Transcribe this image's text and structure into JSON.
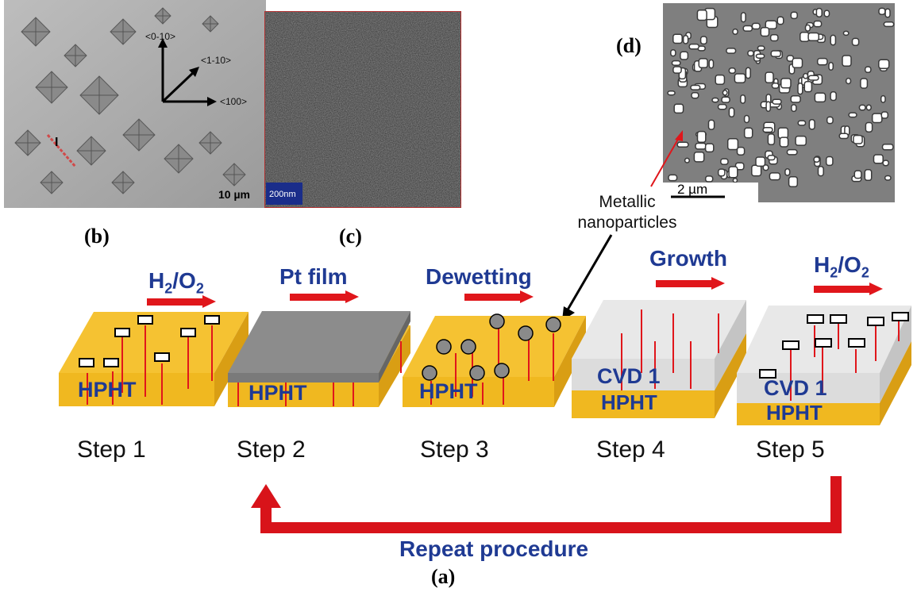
{
  "panel_labels": {
    "a": "(a)",
    "b": "(b)",
    "c": "(c)",
    "d": "(d)"
  },
  "micrograph_b": {
    "directions": [
      "<0-10>",
      "<1-10>",
      "<100>"
    ],
    "marker": "I",
    "scale_bar": "10 µm"
  },
  "micrograph_c": {
    "scale_bar": "200nm"
  },
  "micrograph_d": {
    "scale_bar": "2 µm"
  },
  "annotation": {
    "line1": "Metallic",
    "line2": "nanoparticles"
  },
  "operations": [
    {
      "main": "H",
      "sub1": "2",
      "mid": "/O",
      "sub2": "2"
    },
    {
      "text": "Pt film"
    },
    {
      "text": "Dewetting"
    },
    {
      "text": "Growth"
    },
    {
      "main": "H",
      "sub1": "2",
      "mid": "/O",
      "sub2": "2"
    }
  ],
  "layers": {
    "hpht": "HPHT",
    "cvd": "CVD 1"
  },
  "steps": [
    "Step 1",
    "Step 2",
    "Step 3",
    "Step 4",
    "Step 5"
  ],
  "loop_label": "Repeat procedure",
  "colors": {
    "substrate_top": "#f5c232",
    "substrate_side": "#e0a81a",
    "operation_text": "#1f3a93",
    "arrow": "#e0161b",
    "loop": "#d8131a",
    "pt_film": "#8c8c8c",
    "cvd_layer": "#dcdcdc"
  }
}
